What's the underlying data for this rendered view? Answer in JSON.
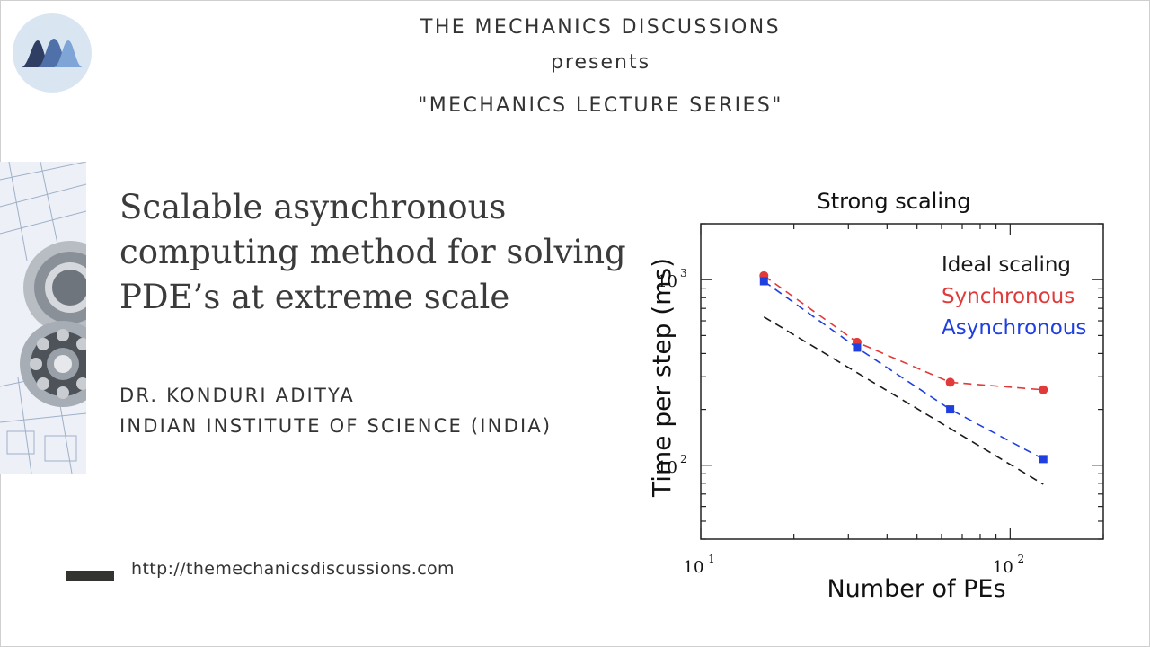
{
  "header": {
    "org": "THE MECHANICS DISCUSSIONS",
    "presents": "presents",
    "series": "\"MECHANICS LECTURE SERIES\""
  },
  "logo": {
    "icon": "mountain-logo-icon",
    "colors": [
      "#2f3f63",
      "#4f70a8",
      "#7fa5d6"
    ]
  },
  "talk": {
    "title_lines": [
      "Scalable asynchronous",
      "computing method for solving",
      "PDE’s at extreme scale"
    ],
    "speaker": "DR. KONDURI ADITYA",
    "affiliation": "INDIAN INSTITUTE OF SCIENCE (INDIA)"
  },
  "footer": {
    "url": "http://themechanicsdiscussions.com"
  },
  "chart_data": {
    "type": "line",
    "title": "Strong scaling",
    "xlabel": "Number of PEs",
    "ylabel": "Time per step (ms)",
    "xscale": "log",
    "yscale": "log",
    "xlim": [
      10,
      200
    ],
    "ylim": [
      40,
      2000
    ],
    "x_ticks": [
      {
        "base": "10",
        "exp": "1"
      },
      {
        "base": "10",
        "exp": "2"
      }
    ],
    "y_ticks": [
      {
        "base": "10",
        "exp": "2"
      },
      {
        "base": "10",
        "exp": "3"
      }
    ],
    "legend_position": "top-right",
    "series": [
      {
        "name": "Ideal scaling",
        "color": "#1a1a1a",
        "marker": "none",
        "dashed": true,
        "x": [
          16,
          128
        ],
        "y": [
          630,
          79
        ]
      },
      {
        "name": "Synchronous",
        "color": "#e03a3a",
        "marker": "circle",
        "dashed": true,
        "x": [
          16,
          32,
          64,
          128
        ],
        "y": [
          1050,
          460,
          280,
          255
        ]
      },
      {
        "name": "Asynchronous",
        "color": "#1f3fe0",
        "marker": "square",
        "dashed": true,
        "x": [
          16,
          32,
          64,
          128
        ],
        "y": [
          980,
          430,
          200,
          108
        ]
      }
    ]
  }
}
